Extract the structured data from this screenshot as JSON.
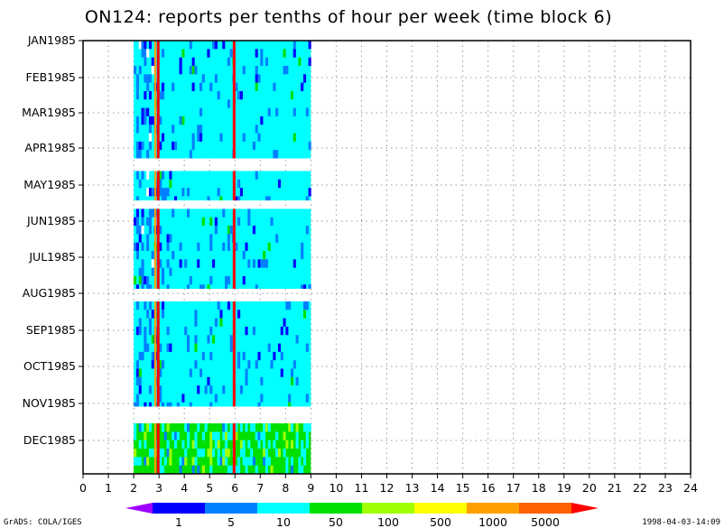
{
  "chart_data": {
    "type": "heatmap",
    "title": "ON124: reports per tenths of hour per week (time block 6)",
    "x_ticks": [
      "0",
      "1",
      "2",
      "3",
      "4",
      "5",
      "6",
      "7",
      "8",
      "9",
      "10",
      "11",
      "12",
      "13",
      "14",
      "15",
      "16",
      "17",
      "18",
      "19",
      "20",
      "21",
      "22",
      "23",
      "24"
    ],
    "xlim": [
      0,
      24
    ],
    "y_labels": [
      "JAN1985",
      "FEB1985",
      "MAR1985",
      "APR1985",
      "MAY1985",
      "JUN1985",
      "JUL1985",
      "AUG1985",
      "SEP1985",
      "OCT1985",
      "NOV1985",
      "DEC1985"
    ],
    "y_range": [
      "JAN1985",
      "end of DEC1985"
    ],
    "grid": true,
    "data_x_range": [
      2,
      9
    ],
    "data_week_blocks": [
      {
        "from_week": 0,
        "to_week": 14
      },
      {
        "from_week": 15.5,
        "to_week": 19
      },
      {
        "from_week": 20,
        "to_week": 29.5
      },
      {
        "from_week": 31,
        "to_week": 43.5
      },
      {
        "from_week": 45.5,
        "to_week": 51.5
      }
    ],
    "total_weeks": 51.5,
    "dominant_level": "10-50",
    "dec_dominant_level": "50-100",
    "vertical_bands": [
      {
        "x": 2.95,
        "level": ">5000"
      },
      {
        "x": 5.95,
        "level": ">5000"
      }
    ],
    "colorbar": {
      "colors": [
        "#a000ff",
        "#0000ff",
        "#0080ff",
        "#00ffff",
        "#00e000",
        "#a0ff00",
        "#ffff00",
        "#ffa000",
        "#ff6000",
        "#ff0000"
      ],
      "labels": [
        "1",
        "5",
        "10",
        "50",
        "100",
        "500",
        "1000",
        "5000"
      ]
    }
  },
  "footer": {
    "left": "GrADS: COLA/IGES",
    "right": "1998-04-03-14:09"
  }
}
